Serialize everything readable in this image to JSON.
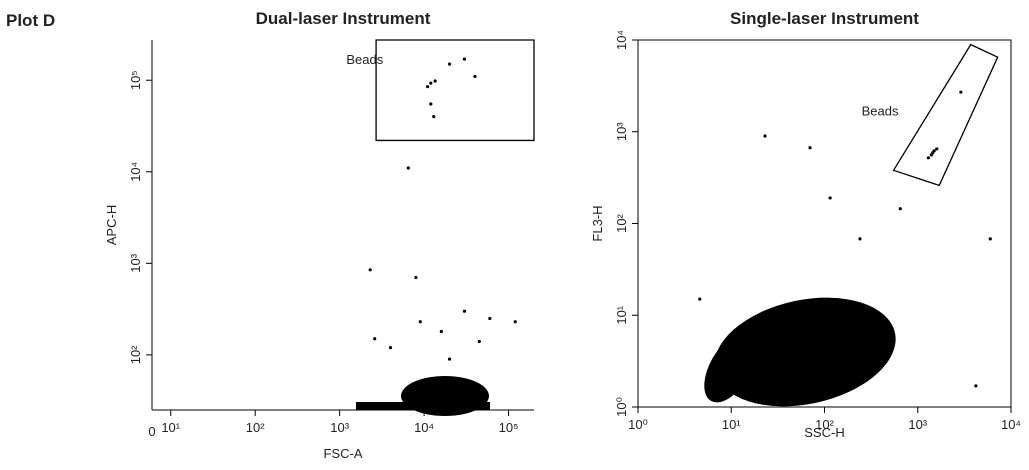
{
  "figure_label": "Plot D",
  "chart_data": [
    {
      "type": "scatter",
      "title": "Dual-laser Instrument",
      "xlabel": "FSC-A",
      "ylabel": "APC-H",
      "log": true,
      "color": "#000000",
      "x_origin_label": "0",
      "xlim": [
        6,
        200000
      ],
      "ylim": [
        25,
        275000
      ],
      "xticks": [
        {
          "value": 10,
          "label": "10¹"
        },
        {
          "value": 100,
          "label": "10²"
        },
        {
          "value": 1000,
          "label": "10³"
        },
        {
          "value": 10000,
          "label": "10⁴"
        },
        {
          "value": 100000,
          "label": "10⁵"
        }
      ],
      "yticks": [
        {
          "value": 100,
          "label": "10²"
        },
        {
          "value": 1000,
          "label": "10³"
        },
        {
          "value": 10000,
          "label": "10⁴"
        },
        {
          "value": 100000,
          "label": "10⁵"
        }
      ],
      "x": [
        6500,
        2300,
        2600,
        9000,
        16000,
        30000,
        60000,
        120000,
        4000,
        20000,
        8000,
        45000,
        12000,
        11000,
        13500,
        20000,
        40000,
        30000,
        13000,
        12000
      ],
      "values": [
        11000,
        850,
        150,
        230,
        180,
        300,
        250,
        230,
        120,
        90,
        700,
        140,
        93000,
        85000,
        98000,
        150000,
        110000,
        170000,
        40000,
        55000
      ],
      "gate_x": [
        2700,
        2700,
        200000,
        200000
      ],
      "gate_y": [
        22000,
        275000,
        275000,
        22000
      ],
      "annotation": "Beads",
      "annotation_x": 1200,
      "annotation_y": 150000
    },
    {
      "type": "scatter",
      "title": "Single-laser Instrument",
      "xlabel": "SSC-H",
      "ylabel": "FL3-H",
      "log": true,
      "color": "#000000",
      "xlim": [
        1,
        10000
      ],
      "ylim": [
        1,
        10000
      ],
      "xticks": [
        {
          "value": 1,
          "label": "10⁰"
        },
        {
          "value": 10,
          "label": "10¹"
        },
        {
          "value": 100,
          "label": "10²"
        },
        {
          "value": 1000,
          "label": "10³"
        },
        {
          "value": 10000,
          "label": "10⁴"
        }
      ],
      "yticks": [
        {
          "value": 1,
          "label": "10⁰"
        },
        {
          "value": 10,
          "label": "10¹"
        },
        {
          "value": 100,
          "label": "10²"
        },
        {
          "value": 1000,
          "label": "10³"
        },
        {
          "value": 10000,
          "label": "10⁴"
        }
      ],
      "x": [
        23,
        70,
        115,
        240,
        650,
        2900,
        6000,
        4200,
        4.6,
        400,
        1450,
        1400,
        1500,
        1300,
        1600
      ],
      "values": [
        900,
        670,
        190,
        68,
        145,
        2700,
        68,
        1.7,
        15,
        9,
        590,
        560,
        620,
        520,
        650
      ],
      "gate_x": [
        550,
        3700,
        7200,
        1700
      ],
      "gate_y": [
        380,
        8900,
        6500,
        260
      ],
      "annotation": "Beads",
      "annotation_x": 250,
      "annotation_y": 1500
    }
  ]
}
